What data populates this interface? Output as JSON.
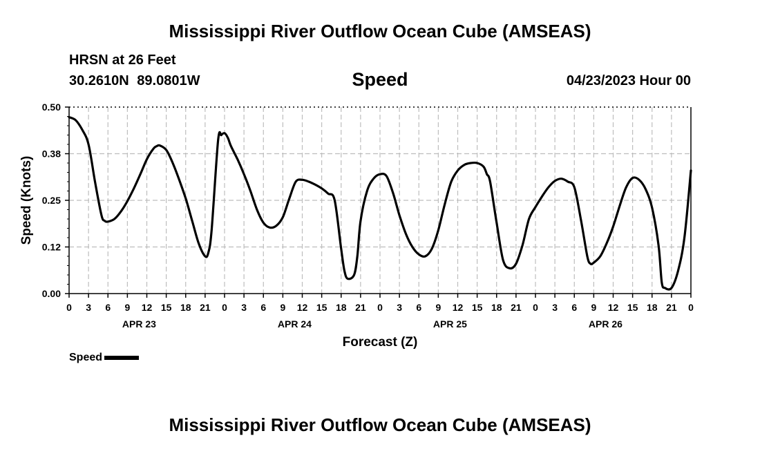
{
  "header": {
    "title": "Mississippi River Outflow Ocean Cube (AMSEAS)",
    "station": "HRSN at 26 Feet",
    "coordinates": "30.2610N  89.0801W",
    "variable": "Speed",
    "datetime": "04/23/2023 Hour 00"
  },
  "legend": {
    "label": "Speed"
  },
  "footer": {
    "title": "Mississippi River Outflow Ocean Cube (AMSEAS)"
  },
  "chart_data": {
    "type": "line",
    "title": "Speed",
    "xlabel": "Forecast (Z)",
    "ylabel": "Speed (Knots)",
    "ylim": [
      0,
      0.5
    ],
    "yticks": [
      "0.00",
      "0.12",
      "0.25",
      "0.38",
      "0.50"
    ],
    "yticks_values": [
      0,
      0.125,
      0.25,
      0.375,
      0.5
    ],
    "xlim": [
      0,
      96
    ],
    "xtick_labels": [
      "0",
      "3",
      "6",
      "9",
      "12",
      "15",
      "18",
      "21",
      "0",
      "3",
      "6",
      "9",
      "12",
      "15",
      "18",
      "21",
      "0",
      "3",
      "6",
      "9",
      "12",
      "15",
      "18",
      "21",
      "0",
      "3",
      "6",
      "9",
      "12",
      "15",
      "18",
      "21",
      "0"
    ],
    "day_labels": [
      {
        "label": "APR 23",
        "hour": 10.5
      },
      {
        "label": "APR 24",
        "hour": 34.5
      },
      {
        "label": "APR 25",
        "hour": 58.5
      },
      {
        "label": "APR 26",
        "hour": 82.5
      }
    ],
    "grid": true,
    "legend_position": "bottom-left",
    "series": [
      {
        "name": "Speed",
        "color": "#000000",
        "x": [
          0,
          1,
          2,
          3,
          4,
          5,
          5.5,
          6,
          7,
          8,
          9,
          10,
          11,
          12,
          13,
          13.5,
          14,
          15,
          16,
          17,
          18,
          19,
          20,
          21,
          21.5,
          22,
          23,
          23.5,
          24,
          24.5,
          25,
          26,
          27,
          28,
          29,
          30,
          31,
          32,
          33,
          34,
          35,
          36,
          37,
          38,
          39,
          40,
          41,
          42,
          42.5,
          43,
          44,
          44.5,
          45,
          46,
          47,
          48,
          49,
          50,
          51,
          52,
          53,
          54,
          55,
          56,
          57,
          58,
          59,
          60,
          61,
          62,
          63,
          64,
          64.5,
          65,
          66,
          67,
          68,
          69,
          70,
          71,
          72,
          73,
          74,
          75,
          76,
          77,
          78,
          79,
          80,
          80.5,
          81,
          82,
          83,
          84,
          85,
          86,
          87,
          88,
          89,
          90,
          91,
          91.5,
          92,
          93,
          94,
          95,
          96
        ],
        "y": [
          0.473,
          0.465,
          0.44,
          0.4,
          0.3,
          0.21,
          0.195,
          0.193,
          0.2,
          0.22,
          0.248,
          0.282,
          0.32,
          0.36,
          0.388,
          0.395,
          0.397,
          0.385,
          0.35,
          0.305,
          0.255,
          0.195,
          0.135,
          0.1,
          0.11,
          0.17,
          0.41,
          0.425,
          0.43,
          0.418,
          0.395,
          0.36,
          0.32,
          0.275,
          0.225,
          0.19,
          0.177,
          0.182,
          0.205,
          0.255,
          0.3,
          0.305,
          0.3,
          0.292,
          0.282,
          0.268,
          0.25,
          0.12,
          0.062,
          0.04,
          0.05,
          0.1,
          0.195,
          0.275,
          0.308,
          0.32,
          0.315,
          0.27,
          0.21,
          0.16,
          0.125,
          0.105,
          0.1,
          0.12,
          0.17,
          0.24,
          0.3,
          0.33,
          0.345,
          0.35,
          0.35,
          0.34,
          0.32,
          0.3,
          0.19,
          0.09,
          0.068,
          0.08,
          0.13,
          0.2,
          0.232,
          0.26,
          0.285,
          0.302,
          0.308,
          0.3,
          0.285,
          0.2,
          0.1,
          0.08,
          0.083,
          0.1,
          0.135,
          0.18,
          0.235,
          0.285,
          0.31,
          0.305,
          0.28,
          0.23,
          0.13,
          0.03,
          0.015,
          0.015,
          0.06,
          0.15,
          0.33
        ]
      }
    ]
  }
}
